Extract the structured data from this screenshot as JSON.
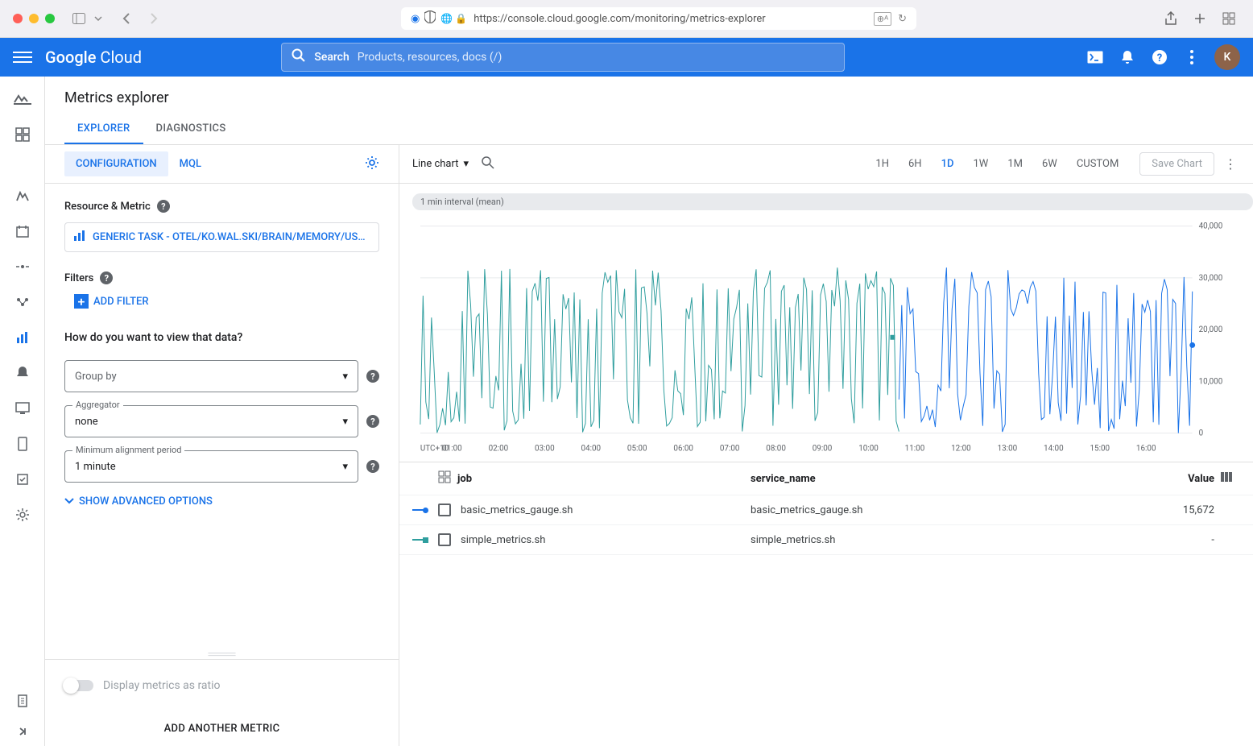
{
  "browser": {
    "url": "https://console.cloud.google.com/monitoring/metrics-explorer"
  },
  "topbar": {
    "logo": "Google Cloud",
    "search_label": "Search",
    "search_placeholder": "Products, resources, docs (/)",
    "avatar_initial": "K"
  },
  "page": {
    "title": "Metrics explorer",
    "tabs": {
      "explorer": "EXPLORER",
      "diagnostics": "DIAGNOSTICS"
    }
  },
  "config": {
    "tabs": {
      "configuration": "CONFIGURATION",
      "mql": "MQL"
    },
    "resource_metric_label": "Resource & Metric",
    "metric_chip": "GENERIC TASK - OTEL/KO.WAL.SKI/BRAIN/MEMORY/USE...",
    "filters_label": "Filters",
    "add_filter": "ADD FILTER",
    "view_question": "How do you want to view that data?",
    "group_by": {
      "label": "Group by",
      "value": ""
    },
    "aggregator": {
      "label": "Aggregator",
      "value": "none"
    },
    "alignment": {
      "label": "Minimum alignment period",
      "value": "1 minute"
    },
    "show_advanced": "SHOW ADVANCED OPTIONS",
    "display_ratio": "Display metrics as ratio",
    "add_another": "ADD ANOTHER METRIC"
  },
  "chart": {
    "type": "Line chart",
    "interval_badge": "1 min interval (mean)",
    "time_ranges": [
      "1H",
      "6H",
      "1D",
      "1W",
      "1M",
      "6W",
      "CUSTOM"
    ],
    "active_range": "1D",
    "save_chart": "Save Chart",
    "y_axis": {
      "min": 0,
      "max": 40000,
      "ticks": [
        "0",
        "10,000",
        "20,000",
        "30,000",
        "40,000"
      ]
    },
    "x_axis": {
      "label": "UTC+10",
      "ticks": [
        "01:00",
        "02:00",
        "03:00",
        "04:00",
        "05:00",
        "06:00",
        "07:00",
        "08:00",
        "09:00",
        "10:00",
        "11:00",
        "12:00",
        "13:00",
        "14:00",
        "15:00",
        "16:00"
      ]
    },
    "series": [
      {
        "name": "simple_metrics.sh",
        "color": "#2f9e9e",
        "marker": "square",
        "range": [
          0,
          0.62
        ]
      },
      {
        "name": "basic_metrics_gauge.sh",
        "color": "#1a73e8",
        "marker": "circle",
        "range": [
          0.62,
          1.0
        ]
      }
    ],
    "grid_color": "#e8eaed",
    "background": "#ffffff"
  },
  "legend": {
    "headers": {
      "job": "job",
      "service": "service_name",
      "value": "Value"
    },
    "rows": [
      {
        "job": "basic_metrics_gauge.sh",
        "service": "basic_metrics_gauge.sh",
        "value": "15,672",
        "color": "#1a73e8",
        "marker": "circle"
      },
      {
        "job": "simple_metrics.sh",
        "service": "simple_metrics.sh",
        "value": "-",
        "color": "#2f9e9e",
        "marker": "square"
      }
    ]
  }
}
